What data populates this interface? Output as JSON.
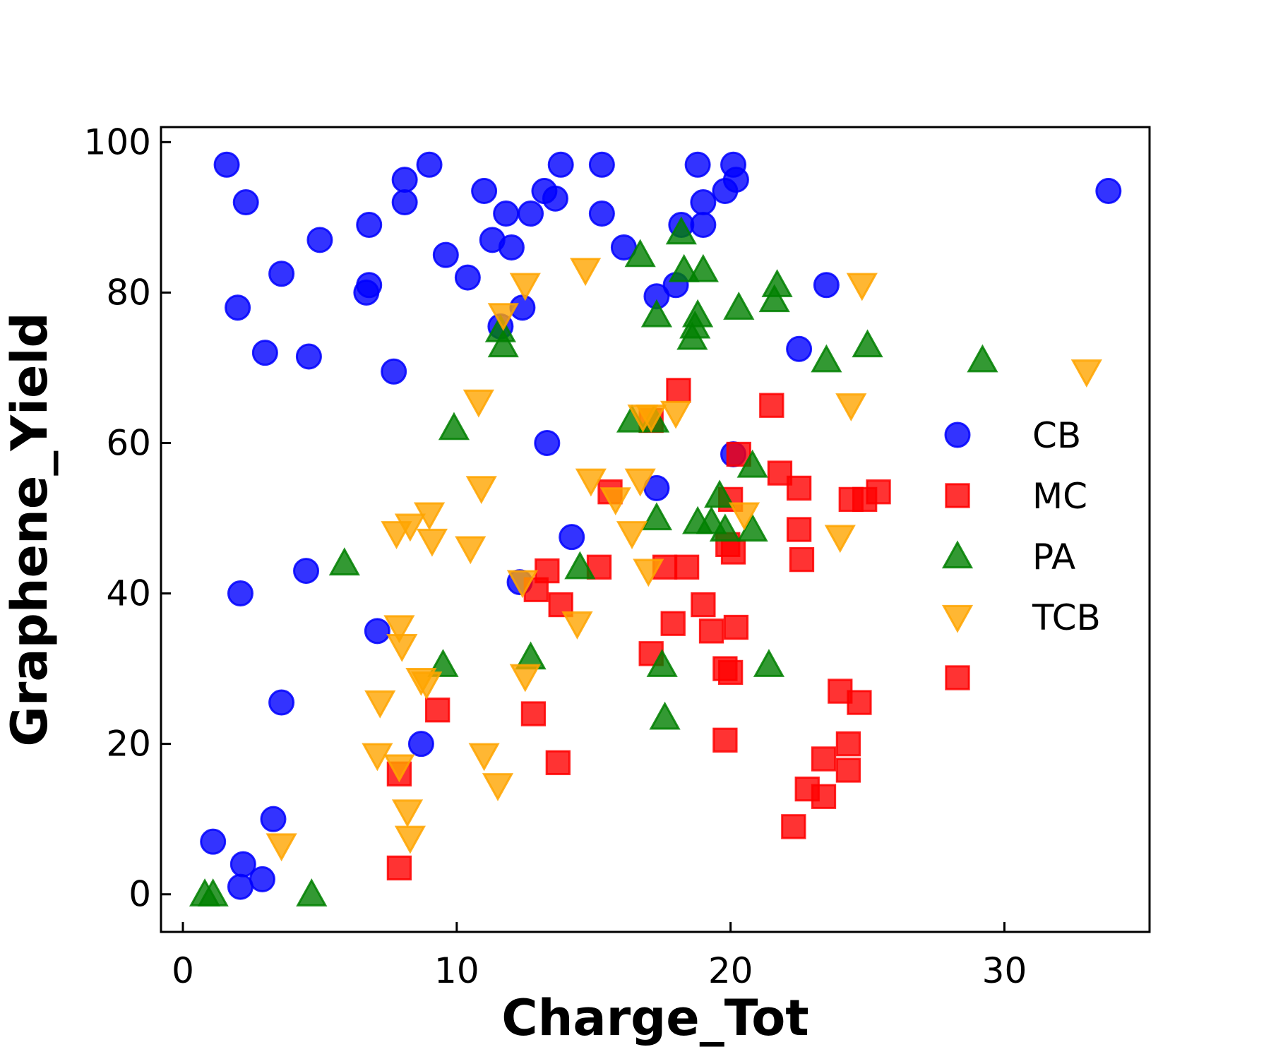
{
  "chart_data": {
    "type": "scatter",
    "xlabel": "Charge_Tot",
    "ylabel": "Graphene_Yield",
    "xlim": [
      -0.8,
      35.3
    ],
    "ylim": [
      -5,
      102
    ],
    "xticks": [
      0,
      10,
      20,
      30
    ],
    "yticks": [
      0,
      20,
      40,
      60,
      80,
      100
    ],
    "grid": false,
    "legend_position": "right",
    "legend_entries": [
      "CB",
      "MC",
      "PA",
      "TCB",
      ""
    ],
    "series": [
      {
        "name": "CB",
        "marker": "circle",
        "color": "#0000ff",
        "points": [
          [
            1.6,
            97
          ],
          [
            2.3,
            92
          ],
          [
            2.0,
            78
          ],
          [
            3.6,
            82.5
          ],
          [
            5.0,
            87
          ],
          [
            3.0,
            72
          ],
          [
            4.6,
            71.5
          ],
          [
            6.7,
            80
          ],
          [
            6.8,
            81
          ],
          [
            6.8,
            89
          ],
          [
            7.7,
            69.5
          ],
          [
            8.1,
            95
          ],
          [
            8.1,
            92
          ],
          [
            9.0,
            97
          ],
          [
            9.6,
            85
          ],
          [
            10.4,
            82
          ],
          [
            11.0,
            93.5
          ],
          [
            11.3,
            87
          ],
          [
            11.6,
            75.5
          ],
          [
            11.8,
            90.5
          ],
          [
            12.0,
            86
          ],
          [
            12.4,
            78
          ],
          [
            12.7,
            90.5
          ],
          [
            13.2,
            93.5
          ],
          [
            13.6,
            92.5
          ],
          [
            13.8,
            97
          ],
          [
            15.3,
            97
          ],
          [
            15.3,
            90.5
          ],
          [
            16.1,
            86
          ],
          [
            17.3,
            79.5
          ],
          [
            18.0,
            81
          ],
          [
            18.2,
            89
          ],
          [
            18.8,
            97
          ],
          [
            19.0,
            92
          ],
          [
            19.0,
            89
          ],
          [
            19.8,
            93.5
          ],
          [
            20.1,
            97
          ],
          [
            20.2,
            95
          ],
          [
            22.5,
            72.5
          ],
          [
            23.5,
            81
          ],
          [
            33.8,
            93.5
          ],
          [
            13.3,
            60
          ],
          [
            20.1,
            58.5
          ],
          [
            17.3,
            54
          ],
          [
            14.2,
            47.5
          ],
          [
            4.5,
            43
          ],
          [
            2.1,
            40
          ],
          [
            7.1,
            35
          ],
          [
            12.3,
            41.5
          ],
          [
            3.6,
            25.5
          ],
          [
            8.7,
            20
          ],
          [
            3.3,
            10
          ],
          [
            1.1,
            7
          ],
          [
            2.2,
            4
          ],
          [
            2.9,
            2
          ],
          [
            2.1,
            1
          ]
        ]
      },
      {
        "name": "MC",
        "marker": "square",
        "color": "#ff0000",
        "points": [
          [
            18.1,
            67
          ],
          [
            21.5,
            65
          ],
          [
            17.1,
            63
          ],
          [
            20.3,
            58.5
          ],
          [
            21.8,
            56
          ],
          [
            22.5,
            54
          ],
          [
            15.6,
            53.5
          ],
          [
            20.0,
            52.5
          ],
          [
            24.4,
            52.5
          ],
          [
            24.9,
            52.5
          ],
          [
            25.4,
            53.5
          ],
          [
            22.5,
            48.5
          ],
          [
            19.9,
            46.5
          ],
          [
            20.1,
            45.5
          ],
          [
            22.6,
            44.5
          ],
          [
            15.2,
            43.5
          ],
          [
            17.6,
            43.5
          ],
          [
            18.4,
            43.5
          ],
          [
            13.3,
            43
          ],
          [
            12.9,
            40.5
          ],
          [
            13.8,
            38.5
          ],
          [
            19.0,
            38.5
          ],
          [
            19.3,
            35
          ],
          [
            20.2,
            35.5
          ],
          [
            17.9,
            36
          ],
          [
            17.1,
            32
          ],
          [
            19.8,
            30
          ],
          [
            20.0,
            29.5
          ],
          [
            24.0,
            27
          ],
          [
            24.7,
            25.5
          ],
          [
            9.3,
            24.5
          ],
          [
            12.8,
            24
          ],
          [
            13.7,
            17.5
          ],
          [
            19.8,
            20.5
          ],
          [
            24.3,
            20
          ],
          [
            23.4,
            18
          ],
          [
            24.3,
            16.5
          ],
          [
            7.9,
            16
          ],
          [
            22.8,
            14
          ],
          [
            23.4,
            13
          ],
          [
            22.3,
            9
          ],
          [
            7.9,
            3.5
          ]
        ]
      },
      {
        "name": "PA",
        "marker": "triangle-up",
        "color": "#008000",
        "points": [
          [
            18.2,
            88
          ],
          [
            16.7,
            85
          ],
          [
            18.3,
            83
          ],
          [
            19.0,
            83
          ],
          [
            21.7,
            81
          ],
          [
            21.6,
            79
          ],
          [
            20.3,
            78
          ],
          [
            17.3,
            77
          ],
          [
            18.8,
            77
          ],
          [
            18.7,
            75.5
          ],
          [
            18.6,
            74
          ],
          [
            11.6,
            75
          ],
          [
            11.7,
            73
          ],
          [
            25.0,
            73
          ],
          [
            23.5,
            71
          ],
          [
            29.2,
            71
          ],
          [
            9.9,
            62
          ],
          [
            16.4,
            63
          ],
          [
            17.2,
            63
          ],
          [
            20.8,
            57
          ],
          [
            19.6,
            53
          ],
          [
            17.3,
            50
          ],
          [
            18.8,
            49.5
          ],
          [
            19.3,
            49.5
          ],
          [
            19.8,
            48.5
          ],
          [
            20.8,
            48.5
          ],
          [
            5.9,
            44
          ],
          [
            14.5,
            43.5
          ],
          [
            9.5,
            30.5
          ],
          [
            12.7,
            31.5
          ],
          [
            17.5,
            30.5
          ],
          [
            21.4,
            30.5
          ],
          [
            17.6,
            23.5
          ],
          [
            0.8,
            0
          ],
          [
            1.1,
            0
          ],
          [
            4.7,
            0
          ]
        ]
      },
      {
        "name": "TCB",
        "marker": "triangle-down",
        "color": "#ffa500",
        "points": [
          [
            14.7,
            83
          ],
          [
            12.5,
            81
          ],
          [
            24.8,
            81
          ],
          [
            11.7,
            77
          ],
          [
            33.0,
            69.5
          ],
          [
            10.8,
            65.5
          ],
          [
            24.4,
            65
          ],
          [
            16.8,
            63.5
          ],
          [
            17.1,
            63.5
          ],
          [
            18.0,
            64
          ],
          [
            10.9,
            54
          ],
          [
            14.9,
            55
          ],
          [
            16.7,
            55
          ],
          [
            15.8,
            52.5
          ],
          [
            20.5,
            50.5
          ],
          [
            9.0,
            50.5
          ],
          [
            8.3,
            49
          ],
          [
            7.8,
            48
          ],
          [
            9.1,
            47
          ],
          [
            16.4,
            48
          ],
          [
            24.0,
            47.5
          ],
          [
            10.5,
            46
          ],
          [
            17.0,
            43
          ],
          [
            12.4,
            41.5
          ],
          [
            14.4,
            36
          ],
          [
            7.9,
            35.5
          ],
          [
            8.0,
            33
          ],
          [
            8.7,
            28.5
          ],
          [
            8.9,
            28
          ],
          [
            12.5,
            29
          ],
          [
            7.2,
            25.5
          ],
          [
            7.1,
            18.5
          ],
          [
            11.0,
            18.5
          ],
          [
            7.9,
            17
          ],
          [
            11.5,
            14.5
          ],
          [
            8.2,
            11
          ],
          [
            8.3,
            7.5
          ],
          [
            3.6,
            6.5
          ]
        ]
      },
      {
        "name": "",
        "marker": "square",
        "color": "#ff0000",
        "points": []
      }
    ]
  }
}
